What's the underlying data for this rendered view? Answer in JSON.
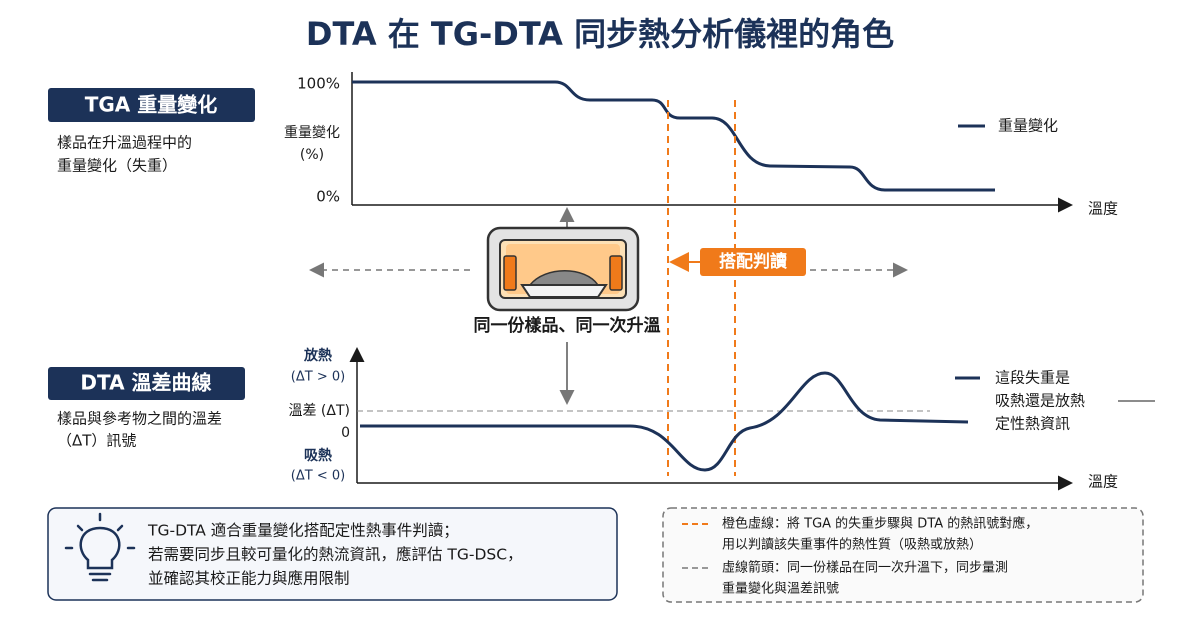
{
  "title": "DTA 在 TG-DTA 同步熱分析儀裡的角色",
  "tga": {
    "label": "TGA 重量變化",
    "description": [
      "樣品在升溫過程中的",
      "重量變化（失重）"
    ],
    "y_label": [
      "重量變化",
      "(%)"
    ],
    "y_top": "100%",
    "y_bottom": "0%",
    "x_label": "溫度",
    "legend": "重量變化"
  },
  "center": {
    "caption": "同一份樣品、同一次升溫",
    "badge": "搭配判讀"
  },
  "dta": {
    "label": "DTA 溫差曲線",
    "description": [
      "樣品與參考物之間的溫差",
      "（ΔT）訊號"
    ],
    "exo": [
      "放熱",
      "(ΔT > 0)"
    ],
    "baseline": "溫差 (ΔT)",
    "zero": "0",
    "endo": [
      "吸熱",
      "(ΔT < 0)"
    ],
    "x_label": "溫度",
    "legend": [
      "這段失重是",
      "吸熱還是放熱",
      "定性熱資訊"
    ]
  },
  "tip": [
    "TG-DTA 適合重量變化搭配定性熱事件判讀；",
    "若需要同步且較可量化的熱流資訊，應評估 TG-DSC，",
    "並確認其校正能力與應用限制"
  ],
  "notes": {
    "orange": [
      "橙色虛線：將 TGA 的失重步驟與 DTA 的熱訊號對應，",
      "用以判讀該失重事件的熱性質（吸熱或放熱）"
    ],
    "gray": [
      "虛線箭頭：同一份樣品在同一次升溫下，同步量測",
      "重量變化與溫差訊號"
    ]
  }
}
